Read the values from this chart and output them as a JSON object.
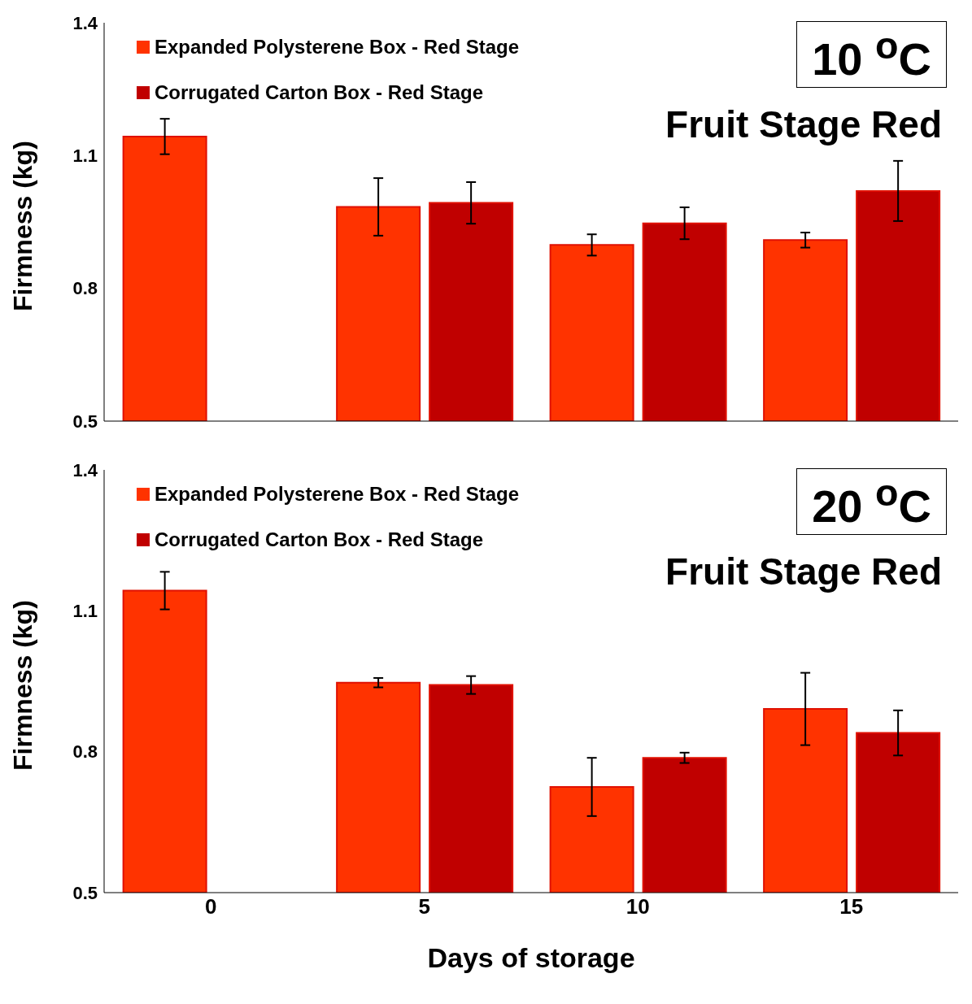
{
  "chart_data": [
    {
      "type": "bar",
      "annotations": [
        "10 $^{o}$C",
        "Fruit Stage Red"
      ],
      "ylabel": "Firmness (kg)",
      "categories": [
        "0",
        "5",
        "10",
        "15"
      ],
      "series": [
        {
          "name": "Expanded Polysterene Box - Red Stage",
          "color": "#ff3300",
          "values": [
            1.143,
            0.984,
            0.898,
            0.909
          ],
          "errors": [
            0.04,
            0.065,
            0.024,
            0.017
          ]
        },
        {
          "name": "Corrugated Carton Box - Red Stage",
          "color": "#c00000",
          "values": [
            null,
            0.993,
            0.947,
            1.02
          ],
          "errors": [
            null,
            0.047,
            0.036,
            0.068
          ]
        }
      ],
      "ylim": [
        0.5,
        1.4
      ],
      "yticks": [
        0.5,
        0.8,
        1.1,
        1.4
      ],
      "legend": "top left",
      "tick_labels": "y"
    },
    {
      "type": "bar",
      "annotations": [
        "20 $^{o}$C",
        "Fruit Stage Red"
      ],
      "ylabel": "Firmness (kg)",
      "xlabel": "Days of storage",
      "categories": [
        "0",
        "5",
        "10",
        "15"
      ],
      "series": [
        {
          "name": "Expanded Polysterene Box - Red Stage",
          "color": "#ff3300",
          "values": [
            1.143,
            0.947,
            0.725,
            0.891
          ],
          "errors": [
            0.04,
            0.01,
            0.062,
            0.077
          ]
        },
        {
          "name": "Corrugated Carton Box - Red Stage",
          "color": "#c00000",
          "values": [
            null,
            0.942,
            0.787,
            0.84
          ],
          "errors": [
            null,
            0.019,
            0.011,
            0.048
          ]
        }
      ],
      "ylim": [
        0.5,
        1.4
      ],
      "yticks": [
        0.5,
        0.8,
        1.1,
        1.4
      ],
      "legend": "top left"
    }
  ]
}
